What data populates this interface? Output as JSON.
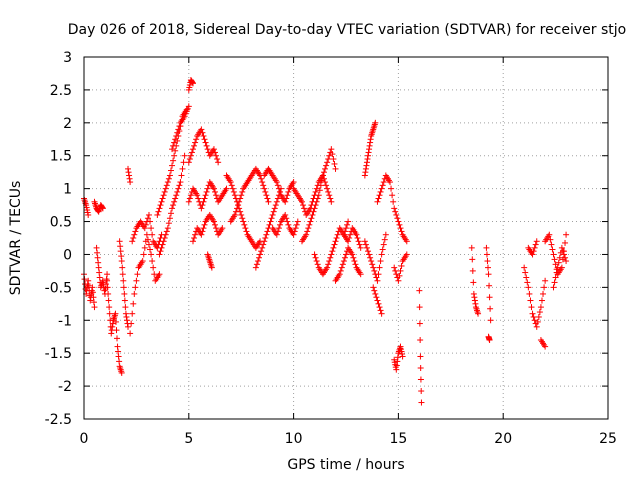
{
  "chart_data": {
    "type": "scatter",
    "title": "Day 026 of 2018, Sidereal Day-to-day VTEC variation (SDTVAR) for receiver stjo",
    "xlabel": "GPS time / hours",
    "ylabel": "SDTVAR / TECUs",
    "xlim": [
      0,
      25
    ],
    "ylim": [
      -2.5,
      3
    ],
    "xticks": [
      0,
      5,
      10,
      15,
      20,
      25
    ],
    "yticks": [
      -2.5,
      -2,
      -1.5,
      -1,
      -0.5,
      0,
      0.5,
      1,
      1.5,
      2,
      2.5,
      3
    ],
    "marker": "+",
    "grid": true,
    "color": "#ff0000",
    "series": [
      {
        "name": "SDTVAR",
        "segments": [
          {
            "x": [
              0.0,
              0.1,
              0.2,
              0.3,
              0.4,
              0.5
            ],
            "y": [
              -0.3,
              -0.6,
              -0.4,
              -0.7,
              -0.5,
              -0.8
            ]
          },
          {
            "x": [
              0.0,
              0.1,
              0.2
            ],
            "y": [
              0.85,
              0.75,
              0.6
            ]
          },
          {
            "x": [
              0.5,
              0.6,
              0.7,
              0.8,
              0.9
            ],
            "y": [
              0.8,
              0.7,
              0.65,
              0.75,
              0.7
            ]
          },
          {
            "x": [
              0.6,
              0.7,
              0.8,
              0.9,
              1.0,
              1.1
            ],
            "y": [
              0.1,
              -0.2,
              -0.5,
              -0.4,
              -0.6,
              -0.3
            ]
          },
          {
            "x": [
              1.1,
              1.2,
              1.3,
              1.4,
              1.5,
              1.6,
              1.7,
              1.8
            ],
            "y": [
              -0.4,
              -0.8,
              -1.2,
              -1.0,
              -0.9,
              -1.4,
              -1.7,
              -1.8
            ]
          },
          {
            "x": [
              1.7,
              1.8,
              1.9,
              2.0,
              2.1
            ],
            "y": [
              0.2,
              -0.1,
              -0.5,
              -0.9,
              -1.1
            ]
          },
          {
            "x": [
              2.1,
              2.2
            ],
            "y": [
              1.3,
              1.1
            ]
          },
          {
            "x": [
              2.2,
              2.4,
              2.6,
              2.8,
              3.0,
              3.2,
              3.4,
              3.6
            ],
            "y": [
              -1.2,
              -0.6,
              -0.2,
              -0.1,
              0.3,
              0.0,
              -0.4,
              -0.3
            ]
          },
          {
            "x": [
              2.3,
              2.5,
              2.7,
              2.9,
              3.1,
              3.3,
              3.5,
              3.7
            ],
            "y": [
              0.2,
              0.4,
              0.5,
              0.4,
              0.6,
              0.2,
              0.1,
              0.3
            ]
          },
          {
            "x": [
              3.5,
              3.7,
              3.9,
              4.1,
              4.3,
              4.5,
              4.7,
              4.9
            ],
            "y": [
              0.6,
              0.8,
              1.0,
              1.2,
              1.5,
              1.8,
              2.1,
              2.2
            ]
          },
          {
            "x": [
              3.6,
              3.8,
              4.0,
              4.2,
              4.4,
              4.6,
              4.8
            ],
            "y": [
              0.0,
              0.2,
              0.4,
              0.7,
              0.9,
              1.1,
              1.5
            ]
          },
          {
            "x": [
              4.2,
              4.4,
              4.6,
              4.8,
              5.0
            ],
            "y": [
              1.6,
              1.8,
              2.0,
              2.1,
              2.25
            ]
          },
          {
            "x": [
              5.0,
              5.1,
              5.2
            ],
            "y": [
              2.5,
              2.65,
              2.6
            ]
          },
          {
            "x": [
              5.0,
              5.2,
              5.4,
              5.6,
              5.8,
              6.0,
              6.2,
              6.4
            ],
            "y": [
              1.4,
              1.6,
              1.8,
              1.9,
              1.7,
              1.5,
              1.6,
              1.4
            ]
          },
          {
            "x": [
              5.0,
              5.2,
              5.4,
              5.6,
              5.8,
              6.0,
              6.2,
              6.4,
              6.6,
              6.8
            ],
            "y": [
              0.8,
              1.0,
              0.9,
              0.7,
              0.9,
              1.1,
              1.0,
              0.8,
              0.9,
              1.0
            ]
          },
          {
            "x": [
              5.2,
              5.4,
              5.6,
              5.8,
              6.0,
              6.2,
              6.4,
              6.6
            ],
            "y": [
              0.2,
              0.4,
              0.3,
              0.5,
              0.6,
              0.5,
              0.3,
              0.4
            ]
          },
          {
            "x": [
              5.9,
              6.0,
              6.1
            ],
            "y": [
              0.0,
              -0.1,
              -0.2
            ]
          },
          {
            "x": [
              6.8,
              7.0,
              7.2,
              7.4,
              7.6,
              7.8,
              8.0,
              8.2,
              8.4
            ],
            "y": [
              1.2,
              1.1,
              0.9,
              0.7,
              0.5,
              0.3,
              0.2,
              0.1,
              0.2
            ]
          },
          {
            "x": [
              7.0,
              7.2,
              7.4,
              7.6,
              7.8,
              8.0,
              8.2,
              8.4,
              8.6,
              8.8
            ],
            "y": [
              0.5,
              0.6,
              0.8,
              1.0,
              1.1,
              1.2,
              1.3,
              1.2,
              1.0,
              0.8
            ]
          },
          {
            "x": [
              8.2,
              8.4,
              8.6,
              8.8,
              9.0,
              9.2,
              9.4
            ],
            "y": [
              -0.2,
              0.0,
              0.2,
              0.4,
              0.6,
              0.8,
              1.0
            ]
          },
          {
            "x": [
              8.6,
              8.8,
              9.0,
              9.2,
              9.4,
              9.6,
              9.8,
              10.0
            ],
            "y": [
              1.2,
              1.3,
              1.2,
              1.1,
              0.9,
              0.8,
              1.0,
              1.1
            ]
          },
          {
            "x": [
              9.0,
              9.2,
              9.4,
              9.6,
              9.8,
              10.0,
              10.2
            ],
            "y": [
              0.4,
              0.3,
              0.5,
              0.6,
              0.4,
              0.3,
              0.5
            ]
          },
          {
            "x": [
              10.0,
              10.2,
              10.4,
              10.6,
              10.8,
              11.0,
              11.2,
              11.4,
              11.6,
              11.8
            ],
            "y": [
              1.0,
              0.9,
              0.8,
              0.6,
              0.7,
              0.9,
              1.1,
              1.2,
              1.0,
              0.8
            ]
          },
          {
            "x": [
              10.4,
              10.6,
              10.8,
              11.0,
              11.2,
              11.4,
              11.6,
              11.8,
              12.0
            ],
            "y": [
              0.2,
              0.3,
              0.5,
              0.7,
              0.9,
              1.2,
              1.4,
              1.6,
              1.3
            ]
          },
          {
            "x": [
              11.0,
              11.2,
              11.4,
              11.6,
              11.8,
              12.0,
              12.2,
              12.4,
              12.6
            ],
            "y": [
              0.0,
              -0.2,
              -0.3,
              -0.2,
              0.0,
              0.2,
              0.4,
              0.3,
              0.5
            ]
          },
          {
            "x": [
              12.0,
              12.2,
              12.4,
              12.6,
              12.8,
              13.0,
              13.2
            ],
            "y": [
              -0.4,
              -0.3,
              -0.1,
              0.1,
              0.0,
              -0.2,
              -0.3
            ]
          },
          {
            "x": [
              12.4,
              12.6,
              12.8,
              13.0,
              13.2
            ],
            "y": [
              0.3,
              0.2,
              0.4,
              0.3,
              0.1
            ]
          },
          {
            "x": [
              13.4,
              13.5,
              13.6,
              13.7,
              13.8,
              13.9
            ],
            "y": [
              1.2,
              1.4,
              1.6,
              1.8,
              1.9,
              2.0
            ]
          },
          {
            "x": [
              13.4,
              13.6,
              13.8,
              14.0,
              14.2,
              14.4
            ],
            "y": [
              0.2,
              0.0,
              -0.2,
              -0.4,
              0.0,
              0.3
            ]
          },
          {
            "x": [
              13.8,
              14.0,
              14.2
            ],
            "y": [
              -0.5,
              -0.7,
              -0.9
            ]
          },
          {
            "x": [
              14.0,
              14.2,
              14.4,
              14.6,
              14.8,
              15.0,
              15.2,
              15.4
            ],
            "y": [
              0.8,
              1.0,
              1.2,
              1.1,
              0.7,
              0.5,
              0.3,
              0.2
            ]
          },
          {
            "x": [
              14.8,
              15.0,
              15.2,
              15.4
            ],
            "y": [
              -0.2,
              -0.4,
              -0.1,
              0.0
            ]
          },
          {
            "x": [
              14.8,
              14.9,
              15.0,
              15.1,
              15.2
            ],
            "y": [
              -1.6,
              -1.75,
              -1.5,
              -1.4,
              -1.55
            ]
          },
          {
            "x": [
              16.0,
              16.05,
              16.1
            ],
            "y": [
              -0.55,
              -1.55,
              -2.25
            ]
          },
          {
            "x": [
              18.5,
              18.6,
              18.7,
              18.8
            ],
            "y": [
              0.1,
              -0.6,
              -0.8,
              -0.9
            ]
          },
          {
            "x": [
              19.2,
              19.3,
              19.4
            ],
            "y": [
              0.1,
              -0.3,
              -1.0
            ]
          },
          {
            "x": [
              19.3,
              19.35
            ],
            "y": [
              -1.25,
              -1.3
            ]
          },
          {
            "x": [
              21.0,
              21.2,
              21.4,
              21.6,
              21.8,
              22.0
            ],
            "y": [
              -0.2,
              -0.5,
              -0.9,
              -1.1,
              -0.8,
              -0.4
            ]
          },
          {
            "x": [
              21.2,
              21.4,
              21.6
            ],
            "y": [
              0.1,
              0.0,
              0.2
            ]
          },
          {
            "x": [
              21.8,
              22.0
            ],
            "y": [
              -1.3,
              -1.4
            ]
          },
          {
            "x": [
              22.0,
              22.2,
              22.4,
              22.6,
              22.8,
              23.0
            ],
            "y": [
              0.2,
              0.3,
              0.0,
              -0.3,
              -0.2,
              0.3
            ]
          },
          {
            "x": [
              22.4,
              22.6,
              22.8,
              23.0
            ],
            "y": [
              -0.5,
              -0.2,
              0.1,
              -0.1
            ]
          }
        ]
      }
    ]
  }
}
